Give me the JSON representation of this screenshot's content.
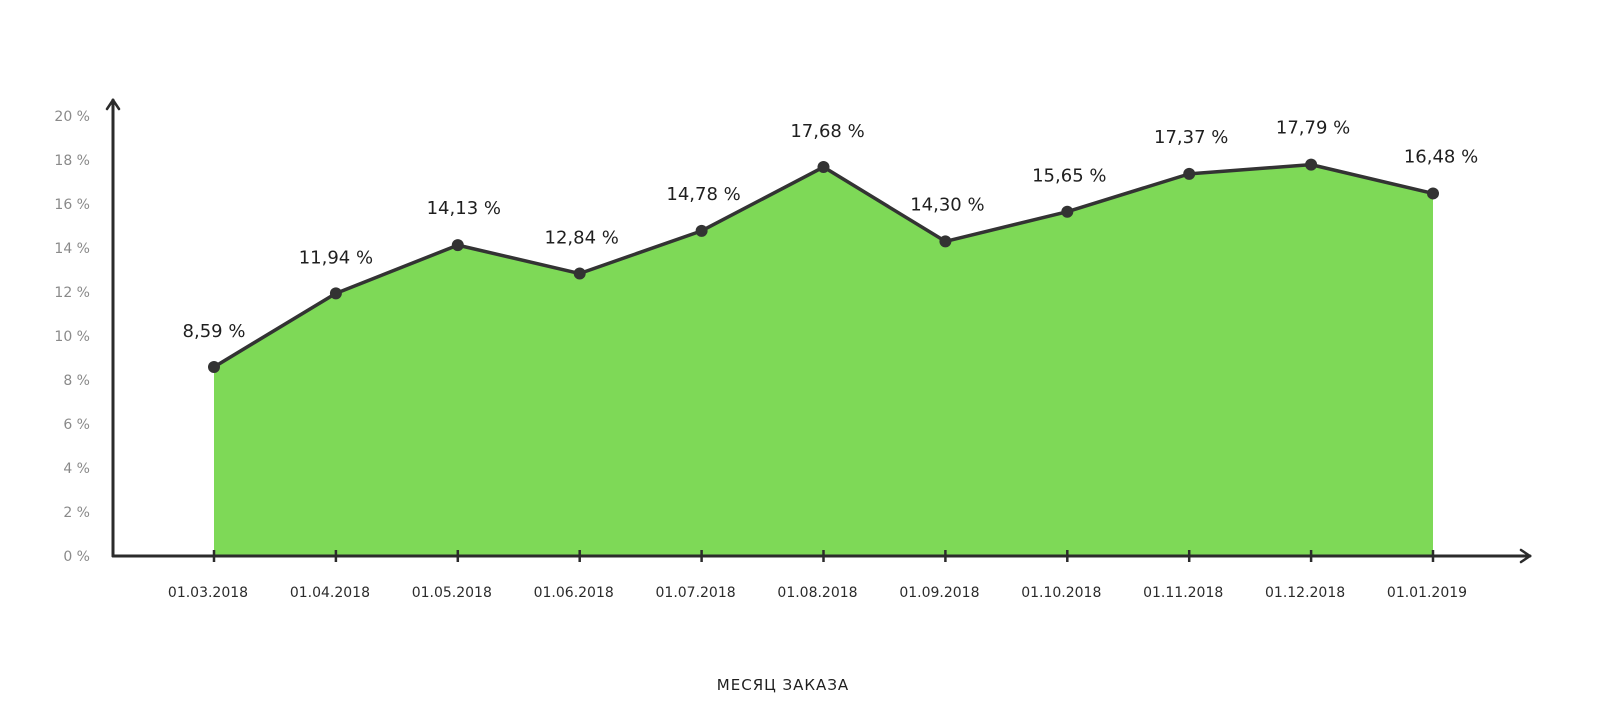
{
  "colors": {
    "area_fill": "#7ed957",
    "line": "#333333",
    "axis": "#2b2b2b",
    "ytick_text": "#8a8a8a",
    "text": "#1f1f1f"
  },
  "chart_data": {
    "type": "area",
    "title": "",
    "xlabel": "МЕСЯЦ ЗАКАЗА",
    "ylabel": "",
    "categories": [
      "01.03.2018",
      "01.04.2018",
      "01.05.2018",
      "01.06.2018",
      "01.07.2018",
      "01.08.2018",
      "01.09.2018",
      "01.10.2018",
      "01.11.2018",
      "01.12.2018",
      "01.01.2019"
    ],
    "values": [
      8.59,
      11.94,
      14.13,
      12.84,
      14.78,
      17.68,
      14.3,
      15.65,
      17.37,
      17.79,
      16.48
    ],
    "data_labels": [
      "8,59 %",
      "11,94 %",
      "14,13 %",
      "12,84 %",
      "14,78 %",
      "17,68 %",
      "14,30 %",
      "15,65 %",
      "17,37 %",
      "17,79 %",
      "16,48 %"
    ],
    "ylim": [
      0,
      20
    ],
    "yticks": [
      0,
      2,
      4,
      6,
      8,
      10,
      12,
      14,
      16,
      18,
      20
    ],
    "ytick_labels": [
      "0 %",
      "2 %",
      "4 %",
      "6 %",
      "8 %",
      "10 %",
      "12 %",
      "14 %",
      "16 %",
      "18 %",
      "20 %"
    ],
    "grid": false,
    "legend": "none"
  }
}
